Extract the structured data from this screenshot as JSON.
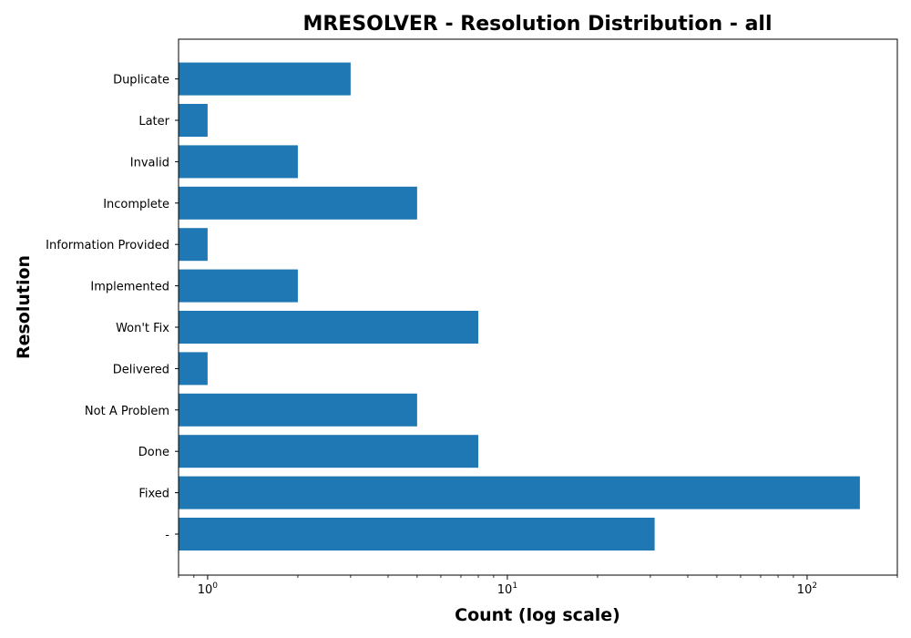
{
  "chart_data": {
    "type": "bar",
    "orientation": "horizontal",
    "title": "MRESOLVER - Resolution Distribution - all",
    "xlabel": "Count (log scale)",
    "ylabel": "Resolution",
    "x_scale": "log",
    "xlim": [
      0.8,
      200
    ],
    "x_ticks": [
      1,
      10,
      100
    ],
    "x_tick_labels": [
      {
        "base": "10",
        "exp": "0"
      },
      {
        "base": "10",
        "exp": "1"
      },
      {
        "base": "10",
        "exp": "2"
      }
    ],
    "categories": [
      "-",
      "Fixed",
      "Done",
      "Not A Problem",
      "Delivered",
      "Won't Fix",
      "Implemented",
      "Information Provided",
      "Incomplete",
      "Invalid",
      "Later",
      "Duplicate"
    ],
    "values": [
      31,
      150,
      8,
      5,
      1,
      8,
      2,
      1,
      5,
      2,
      1,
      3
    ],
    "bar_color": "#1f77b4",
    "grid": false,
    "legend": "none"
  }
}
